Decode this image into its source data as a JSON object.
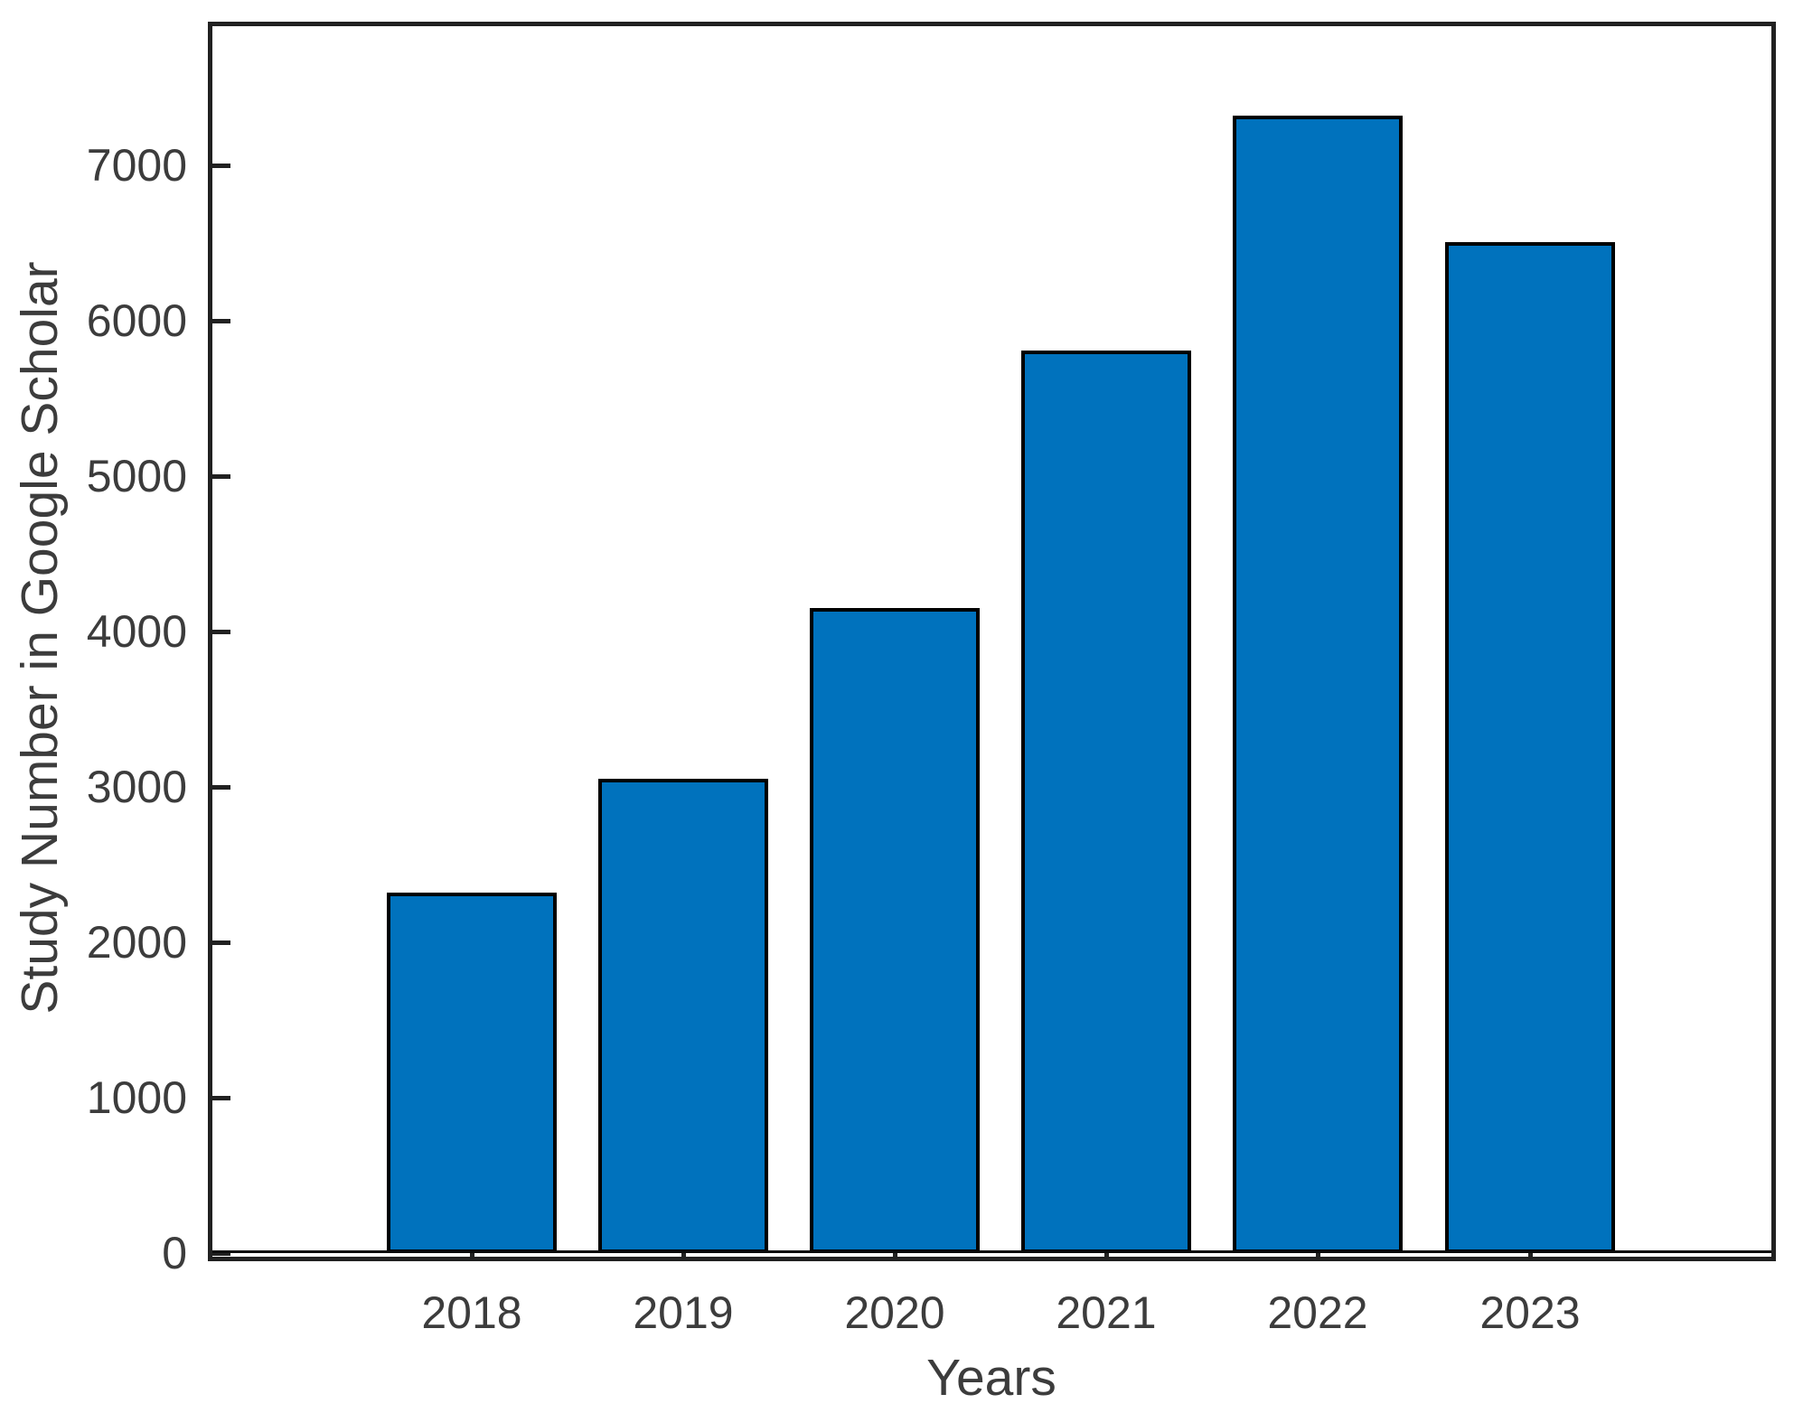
{
  "chart_data": {
    "type": "bar",
    "categories": [
      "2018",
      "2019",
      "2020",
      "2021",
      "2022",
      "2023"
    ],
    "values": [
      2320,
      3050,
      4150,
      5810,
      7320,
      6505
    ],
    "title": "",
    "xlabel": "Years",
    "ylabel": "Study Number in Google Scholar",
    "ylim": [
      0,
      7900
    ],
    "yticks": [
      0,
      1000,
      2000,
      3000,
      4000,
      5000,
      6000,
      7000
    ],
    "grid": false,
    "legend": null,
    "bar_fill": "#0072BD",
    "bar_edge": "#000000",
    "axis_color": "#212121",
    "text_color": "#3c3c3c"
  }
}
